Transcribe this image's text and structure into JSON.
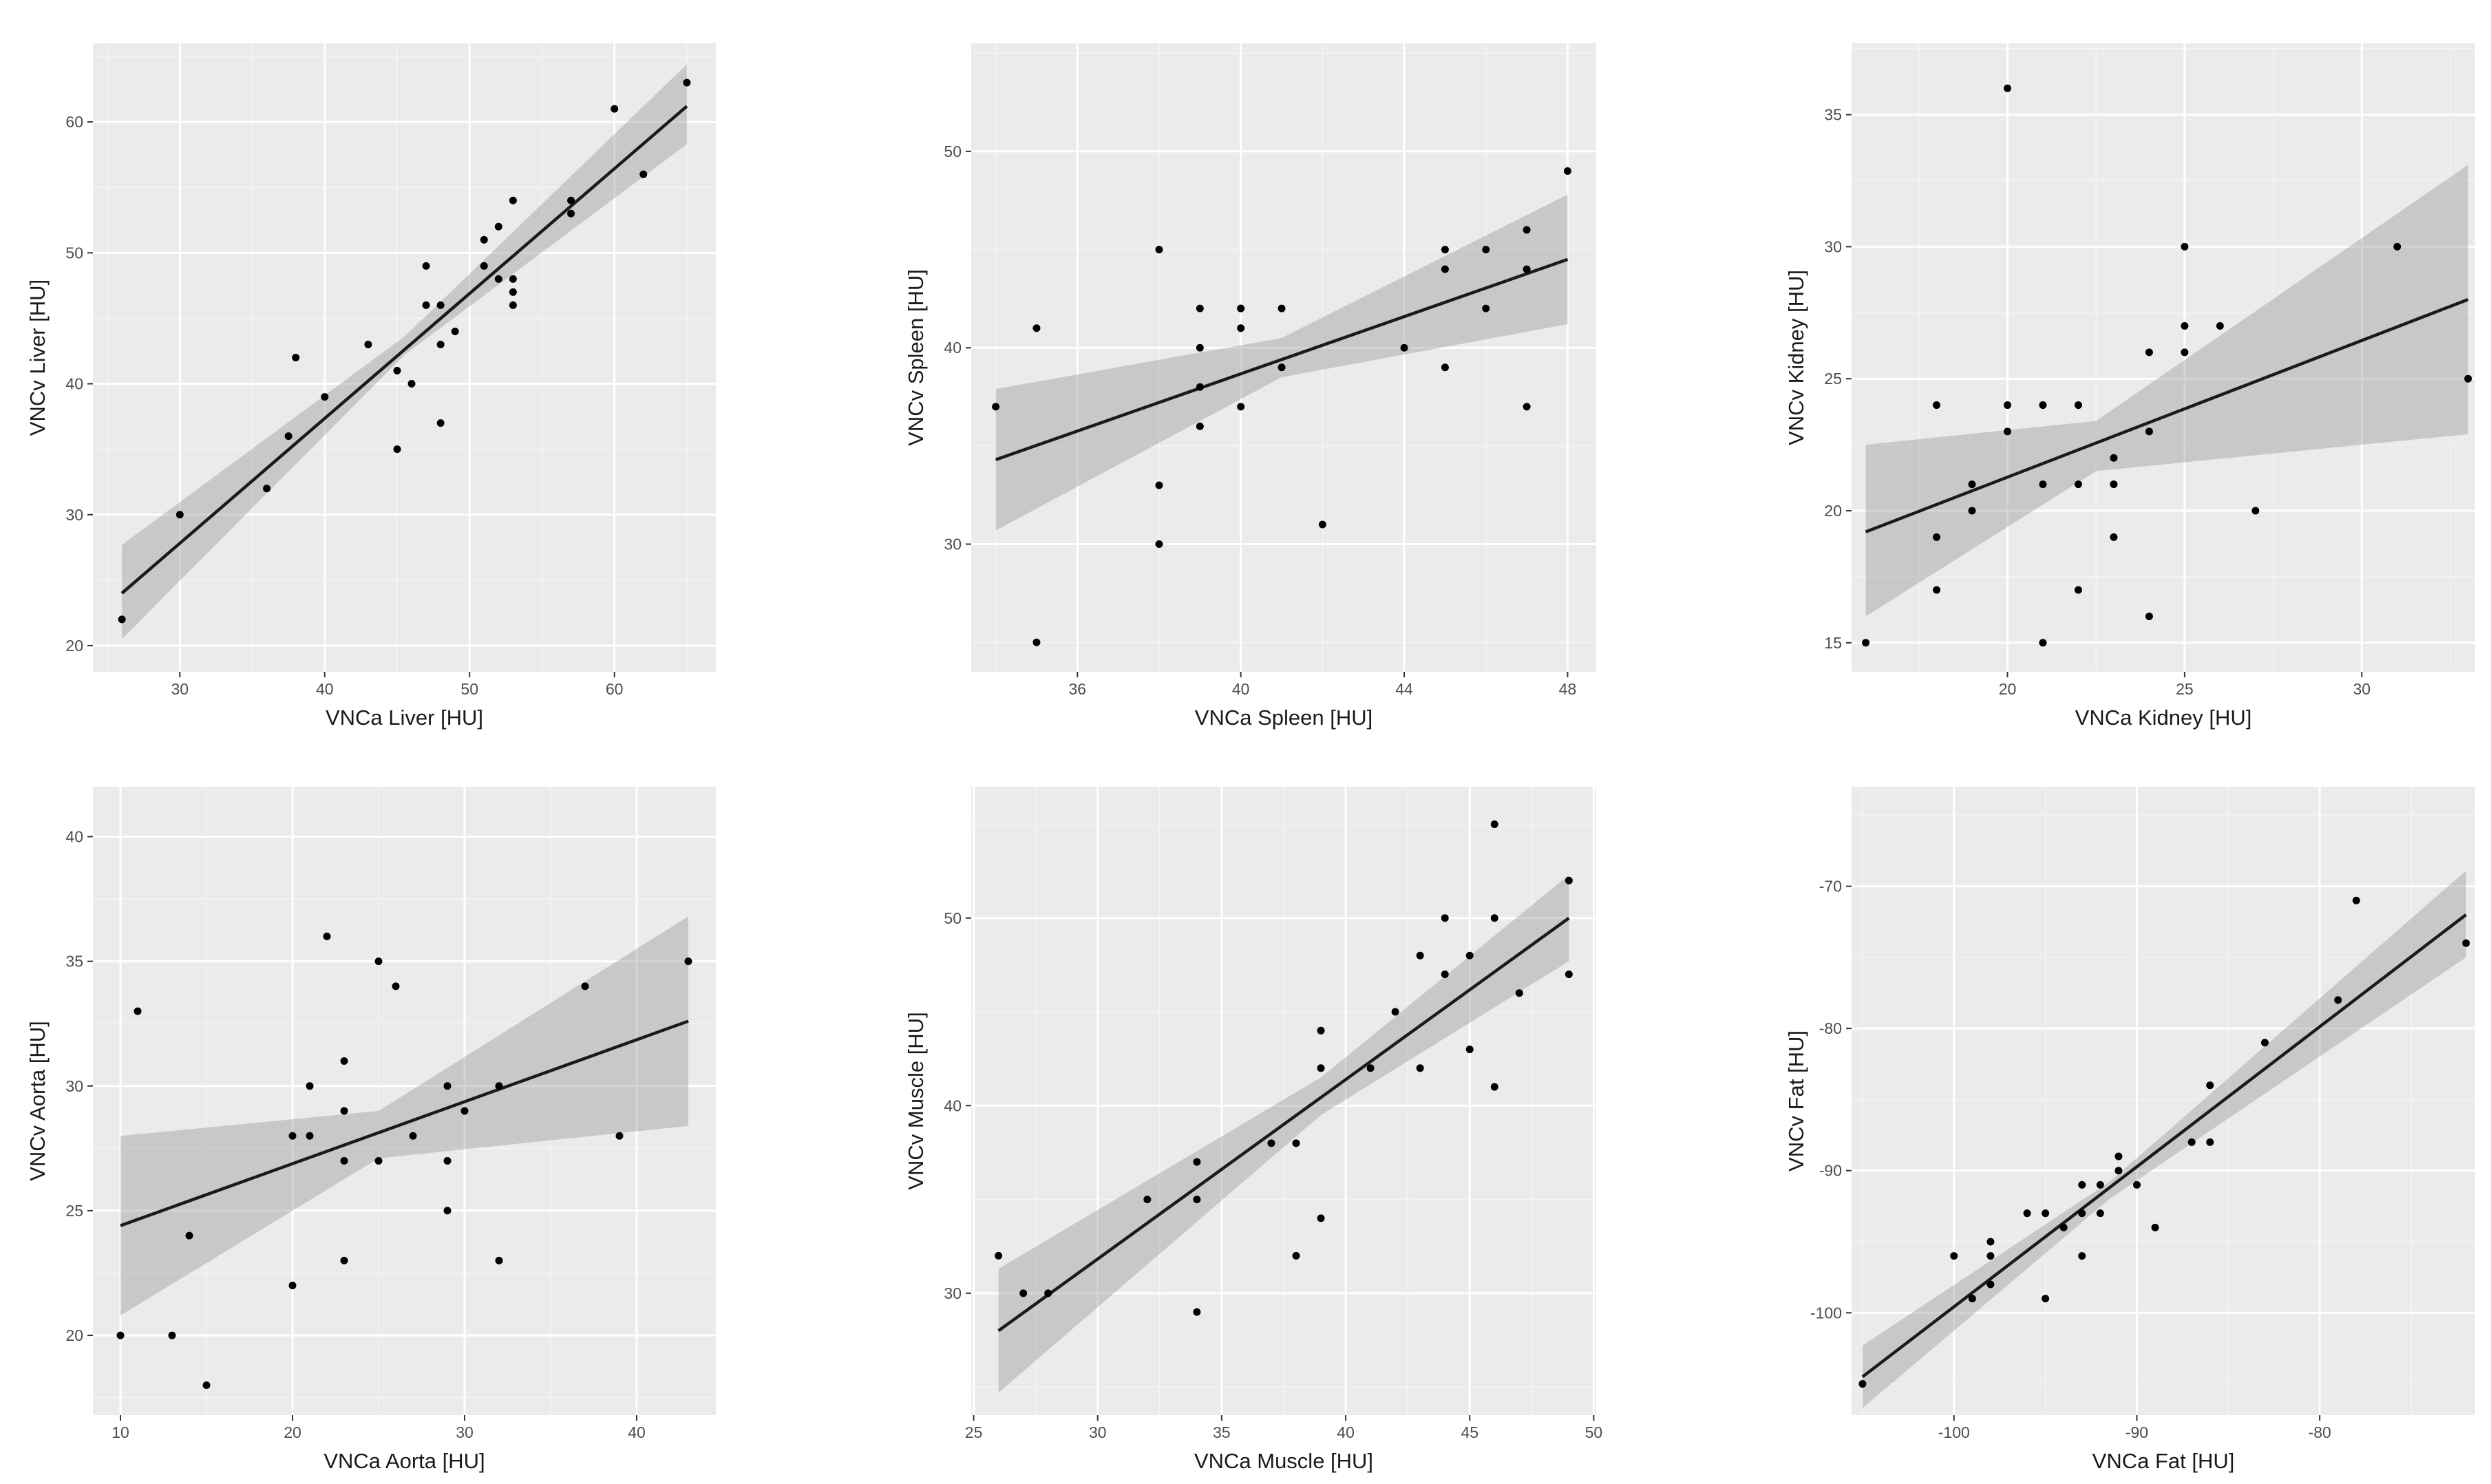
{
  "chart_data": [
    {
      "type": "scatter",
      "title": "",
      "xlabel": "VNCa Liver [HU]",
      "ylabel": "VNCv Liver [HU]",
      "xlim": [
        24,
        67
      ],
      "ylim": [
        18,
        66
      ],
      "xticks": [
        30,
        40,
        50,
        60
      ],
      "yticks": [
        20,
        30,
        40,
        50,
        60
      ],
      "grid": true,
      "points": [
        [
          26,
          22
        ],
        [
          30,
          30
        ],
        [
          36,
          32
        ],
        [
          37.5,
          36
        ],
        [
          38,
          42
        ],
        [
          40,
          39
        ],
        [
          43,
          43
        ],
        [
          45,
          35
        ],
        [
          45,
          41
        ],
        [
          46,
          40
        ],
        [
          47,
          46
        ],
        [
          47,
          49
        ],
        [
          48,
          37
        ],
        [
          48,
          43
        ],
        [
          48,
          46
        ],
        [
          49,
          44
        ],
        [
          51,
          49
        ],
        [
          51,
          51
        ],
        [
          52,
          48
        ],
        [
          52,
          52
        ],
        [
          53,
          46
        ],
        [
          53,
          47
        ],
        [
          53,
          48
        ],
        [
          53,
          54
        ],
        [
          57,
          53
        ],
        [
          57,
          54
        ],
        [
          60,
          61
        ],
        [
          62,
          56
        ],
        [
          65,
          63
        ]
      ],
      "fit": {
        "x": [
          26,
          65
        ],
        "y": [
          24,
          61.2
        ]
      },
      "band": {
        "x": [
          26,
          45.5,
          65
        ],
        "lower": [
          20.5,
          42.2,
          58.3
        ],
        "upper": [
          27.7,
          43.6,
          64.4
        ]
      }
    },
    {
      "type": "scatter",
      "title": "",
      "xlabel": "VNCa Spleen [HU]",
      "ylabel": "VNCv Spleen [HU]",
      "xlim": [
        33.4,
        48.7
      ],
      "ylim": [
        23.5,
        55.5
      ],
      "xticks": [
        36,
        40,
        44,
        48
      ],
      "yticks": [
        30,
        40,
        50
      ],
      "grid": true,
      "points": [
        [
          34,
          37
        ],
        [
          35,
          25
        ],
        [
          35,
          41
        ],
        [
          38,
          30
        ],
        [
          38,
          33
        ],
        [
          38,
          45
        ],
        [
          39,
          36
        ],
        [
          39,
          38
        ],
        [
          39,
          40
        ],
        [
          39,
          42
        ],
        [
          40,
          37
        ],
        [
          40,
          41
        ],
        [
          40,
          42
        ],
        [
          40,
          42
        ],
        [
          41,
          39
        ],
        [
          41,
          42
        ],
        [
          42,
          31
        ],
        [
          44,
          40
        ],
        [
          45,
          39
        ],
        [
          45,
          44
        ],
        [
          45,
          45
        ],
        [
          46,
          42
        ],
        [
          46,
          45
        ],
        [
          47,
          37
        ],
        [
          47,
          44
        ],
        [
          47,
          46
        ],
        [
          48,
          49
        ]
      ],
      "fit": {
        "x": [
          34,
          48
        ],
        "y": [
          34.3,
          44.5
        ]
      },
      "band": {
        "x": [
          34,
          41,
          48
        ],
        "lower": [
          30.7,
          38.5,
          41.2
        ],
        "upper": [
          37.9,
          40.5,
          47.8
        ]
      }
    },
    {
      "type": "scatter",
      "title": "",
      "xlabel": "VNCa Kidney [HU]",
      "ylabel": "VNCv Kidney [HU]",
      "xlim": [
        15.6,
        33.2
      ],
      "ylim": [
        13.9,
        37.7
      ],
      "xticks": [
        20,
        25,
        30
      ],
      "yticks": [
        15,
        20,
        25,
        30,
        35
      ],
      "grid": true,
      "points": [
        [
          16,
          15
        ],
        [
          18,
          17
        ],
        [
          18,
          19
        ],
        [
          18,
          24
        ],
        [
          19,
          20
        ],
        [
          19,
          21
        ],
        [
          20,
          23
        ],
        [
          20,
          24
        ],
        [
          20,
          36
        ],
        [
          21,
          15
        ],
        [
          21,
          21
        ],
        [
          21,
          24
        ],
        [
          22,
          17
        ],
        [
          22,
          21
        ],
        [
          22,
          24
        ],
        [
          23,
          19
        ],
        [
          23,
          21
        ],
        [
          23,
          22
        ],
        [
          24,
          16
        ],
        [
          24,
          23
        ],
        [
          24,
          26
        ],
        [
          25,
          26
        ],
        [
          25,
          27
        ],
        [
          25,
          30
        ],
        [
          26,
          27
        ],
        [
          27,
          20
        ],
        [
          31,
          30
        ],
        [
          33,
          25
        ]
      ],
      "fit": {
        "x": [
          16,
          33
        ],
        "y": [
          19.2,
          28.0
        ]
      },
      "band": {
        "x": [
          16,
          22.5,
          33
        ],
        "lower": [
          16.0,
          21.5,
          22.9
        ],
        "upper": [
          22.5,
          23.4,
          33.1
        ]
      }
    },
    {
      "type": "scatter",
      "title": "",
      "xlabel": "VNCa Aorta [HU]",
      "ylabel": "VNCv Aorta [HU]",
      "xlim": [
        8.4,
        44.6
      ],
      "ylim": [
        16.8,
        42
      ],
      "xticks": [
        10,
        20,
        30,
        40
      ],
      "yticks": [
        20,
        25,
        30,
        35,
        40
      ],
      "grid": true,
      "points": [
        [
          10,
          20
        ],
        [
          11,
          33
        ],
        [
          13,
          20
        ],
        [
          14,
          24
        ],
        [
          15,
          18
        ],
        [
          20,
          22
        ],
        [
          20,
          28
        ],
        [
          21,
          28
        ],
        [
          21,
          30
        ],
        [
          22,
          36
        ],
        [
          23,
          23
        ],
        [
          23,
          27
        ],
        [
          23,
          29
        ],
        [
          23,
          31
        ],
        [
          25,
          27
        ],
        [
          25,
          35
        ],
        [
          26,
          34
        ],
        [
          27,
          28
        ],
        [
          29,
          25
        ],
        [
          29,
          27
        ],
        [
          29,
          30
        ],
        [
          30,
          29
        ],
        [
          32,
          23
        ],
        [
          32,
          30
        ],
        [
          37,
          34
        ],
        [
          39,
          28
        ],
        [
          43,
          35
        ]
      ],
      "fit": {
        "x": [
          10,
          43
        ],
        "y": [
          24.4,
          32.6
        ]
      },
      "band": {
        "x": [
          10,
          25,
          43
        ],
        "lower": [
          20.8,
          27.1,
          28.4
        ],
        "upper": [
          28.0,
          29.0,
          36.8
        ]
      }
    },
    {
      "type": "scatter",
      "title": "",
      "xlabel": "VNCa Muscle [HU]",
      "ylabel": "VNCv Muscle [HU]",
      "xlim": [
        24.9,
        50.1
      ],
      "ylim": [
        23.5,
        57
      ],
      "xticks": [
        25,
        30,
        35,
        40,
        45,
        50
      ],
      "yticks": [
        30,
        40,
        50
      ],
      "grid": true,
      "points": [
        [
          26,
          32
        ],
        [
          27,
          30
        ],
        [
          28,
          30
        ],
        [
          32,
          35
        ],
        [
          34,
          29
        ],
        [
          34,
          35
        ],
        [
          34,
          37
        ],
        [
          37,
          38
        ],
        [
          38,
          32
        ],
        [
          38,
          38
        ],
        [
          39,
          34
        ],
        [
          39,
          42
        ],
        [
          39,
          44
        ],
        [
          41,
          42
        ],
        [
          42,
          45
        ],
        [
          43,
          42
        ],
        [
          43,
          48
        ],
        [
          44,
          47
        ],
        [
          44,
          50
        ],
        [
          45,
          43
        ],
        [
          45,
          48
        ],
        [
          46,
          41
        ],
        [
          46,
          50
        ],
        [
          46,
          55
        ],
        [
          47,
          46
        ],
        [
          49,
          47
        ],
        [
          49,
          52
        ]
      ],
      "fit": {
        "x": [
          26,
          49
        ],
        "y": [
          28.0,
          50.0
        ]
      },
      "band": {
        "x": [
          26,
          39,
          49
        ],
        "lower": [
          24.7,
          39.5,
          47.7
        ],
        "upper": [
          31.3,
          41.5,
          52.3
        ]
      }
    },
    {
      "type": "scatter",
      "title": "",
      "xlabel": "VNCa Fat [HU]",
      "ylabel": "VNCv Fat [HU]",
      "xlim": [
        -105.6,
        -71.5
      ],
      "ylim": [
        -107.2,
        -63
      ],
      "xticks": [
        -100,
        -90,
        -80
      ],
      "yticks": [
        -70,
        -80,
        -90,
        -100
      ],
      "grid": true,
      "points": [
        [
          -105,
          -105
        ],
        [
          -100,
          -96
        ],
        [
          -99,
          -99
        ],
        [
          -98,
          -98
        ],
        [
          -98,
          -96
        ],
        [
          -98,
          -95
        ],
        [
          -96,
          -93
        ],
        [
          -95,
          -93
        ],
        [
          -95,
          -99
        ],
        [
          -94,
          -94
        ],
        [
          -93,
          -91
        ],
        [
          -93,
          -93
        ],
        [
          -93,
          -96
        ],
        [
          -92,
          -91
        ],
        [
          -92,
          -93
        ],
        [
          -91,
          -89
        ],
        [
          -91,
          -90
        ],
        [
          -90,
          -91
        ],
        [
          -89,
          -94
        ],
        [
          -87,
          -88
        ],
        [
          -86,
          -84
        ],
        [
          -86,
          -88
        ],
        [
          -83,
          -81
        ],
        [
          -79,
          -78
        ],
        [
          -78,
          -71
        ],
        [
          -72,
          -74
        ]
      ],
      "fit": {
        "x": [
          -105,
          -72
        ],
        "y": [
          -104.5,
          -72.0
        ]
      },
      "band": {
        "x": [
          -105,
          -91.5,
          -72
        ],
        "lower": [
          -106.7,
          -92.0,
          -75.0
        ],
        "upper": [
          -102.3,
          -90.8,
          -68.9
        ]
      }
    }
  ]
}
